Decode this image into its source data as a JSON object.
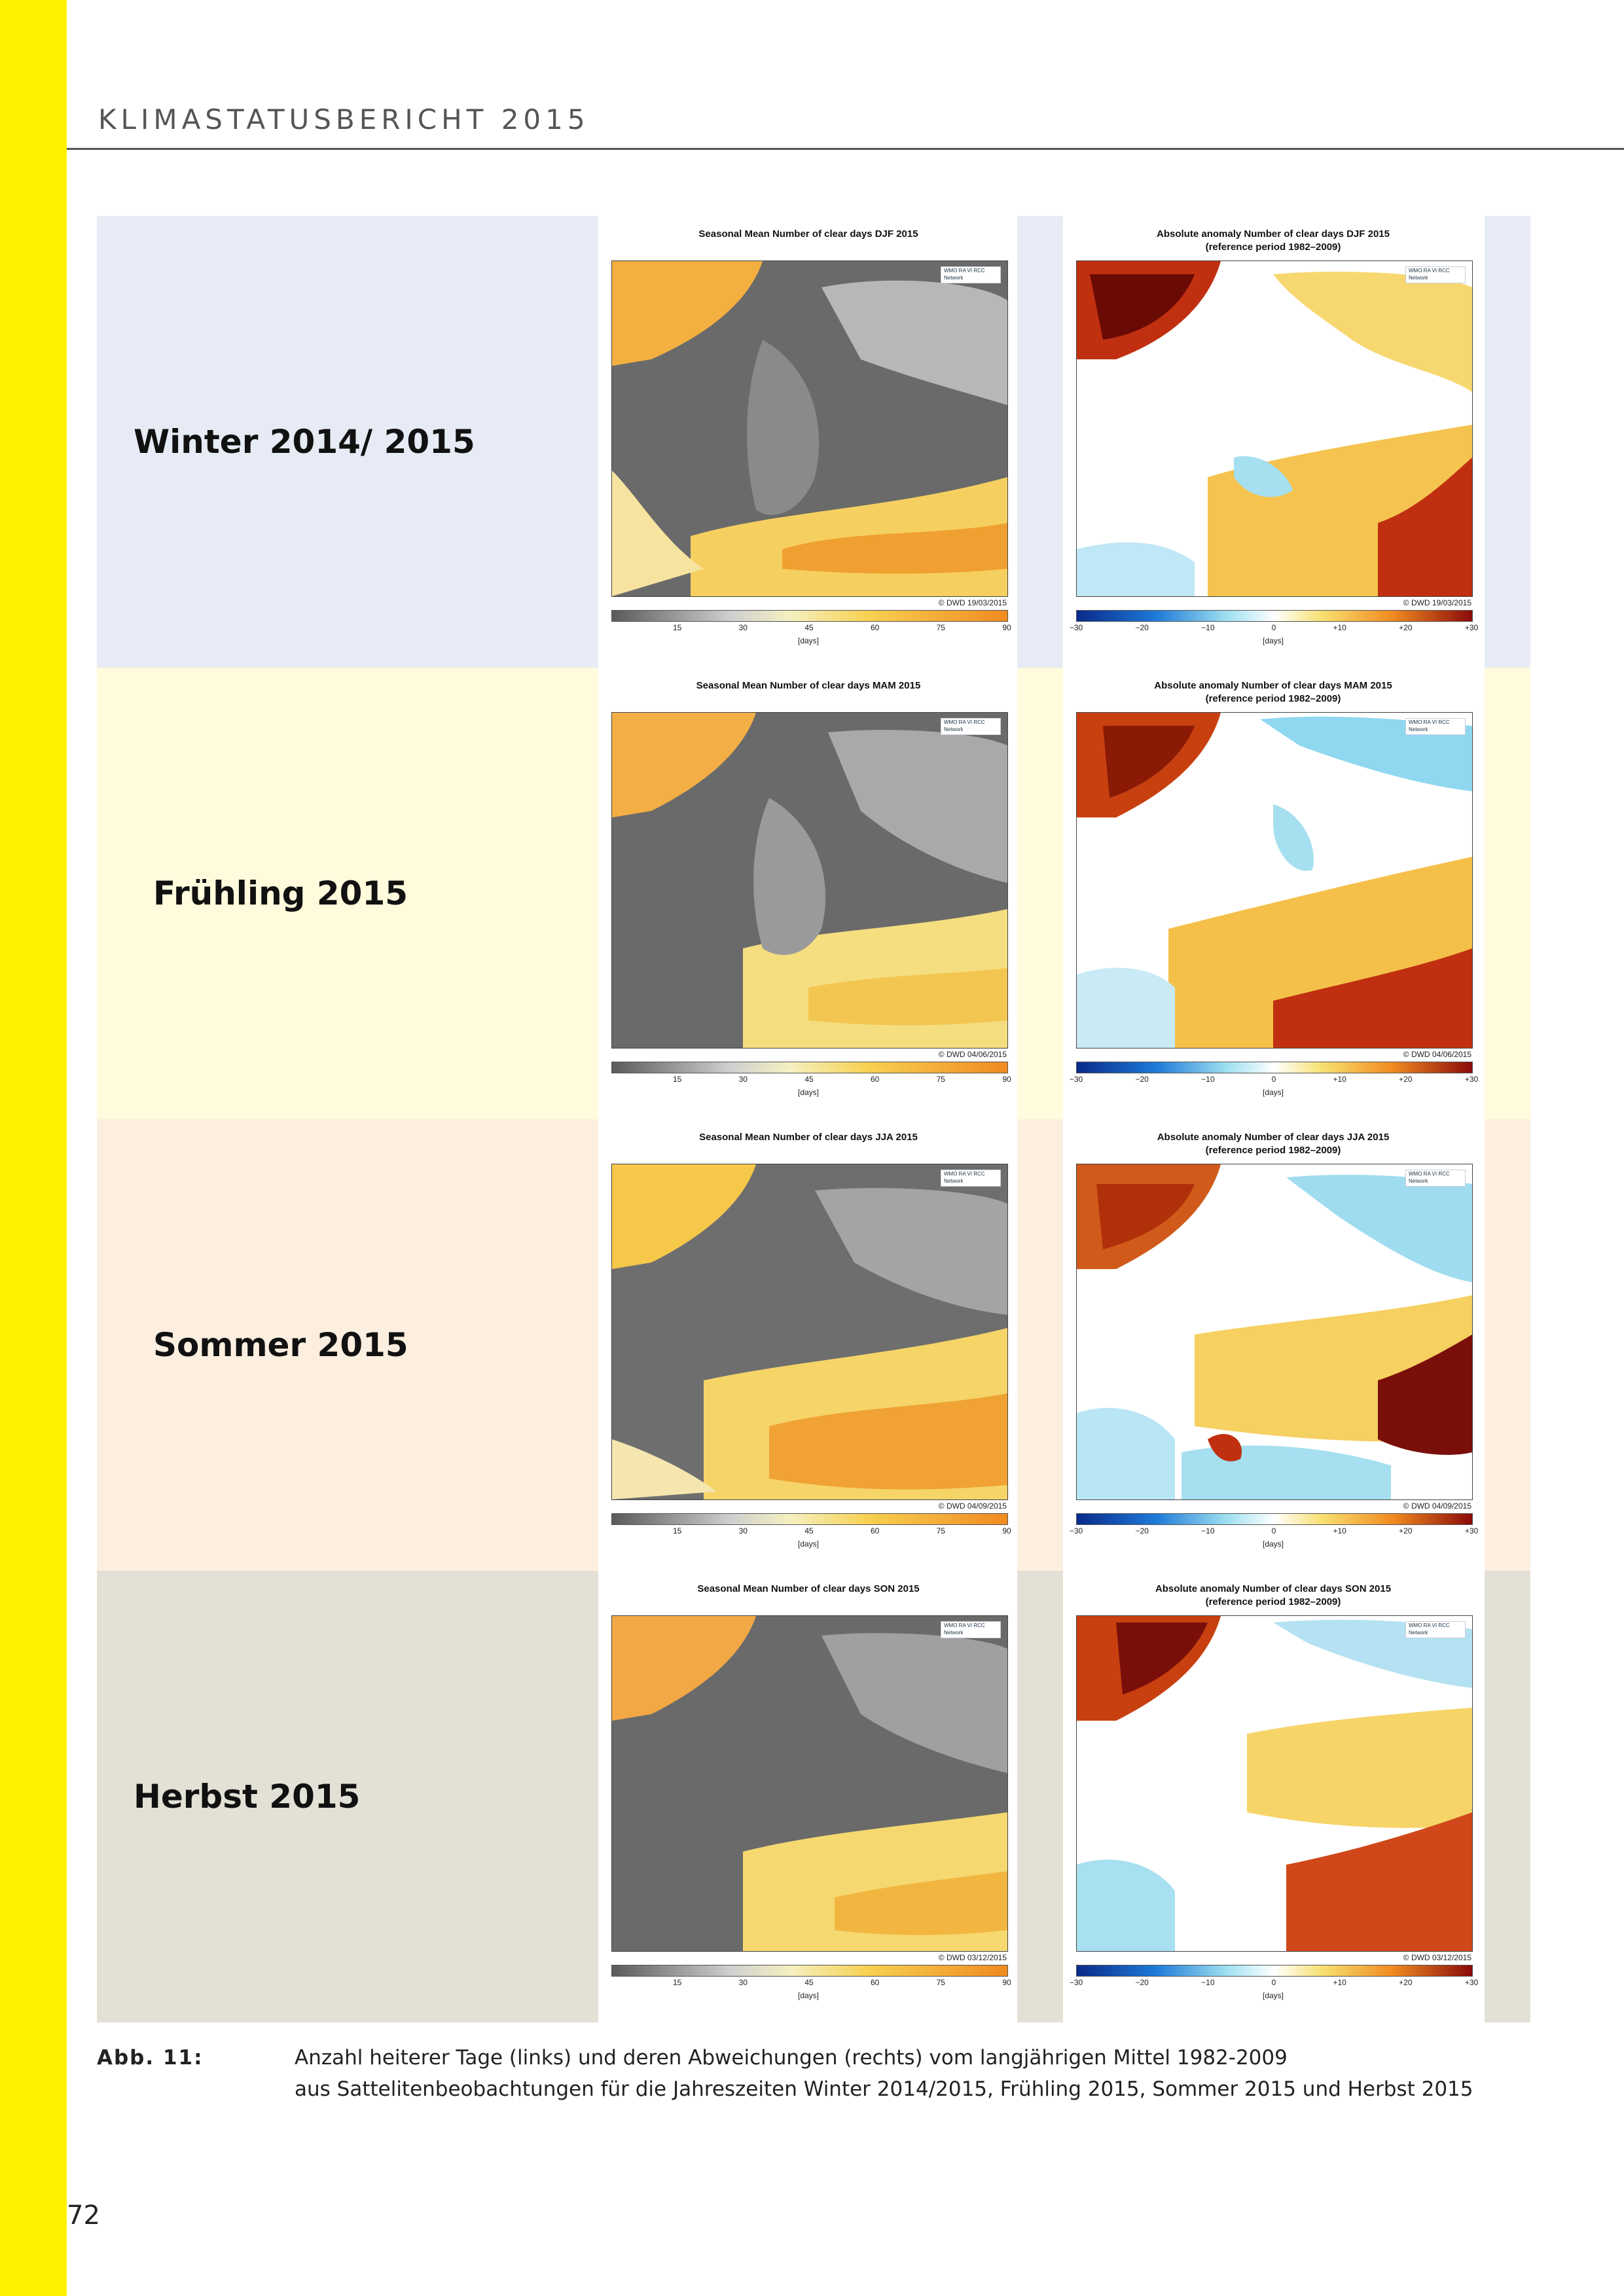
{
  "header": {
    "title": "KLIMASTATUSBERICHT 2015"
  },
  "colors": {
    "stripe": "#fff200",
    "season_winter": "#e6ebf5",
    "season_spring": "#fffbdc",
    "season_summer": "#fdefe0",
    "season_autumn": "#e3e1d6"
  },
  "rows": [
    {
      "label": "Winter 2014/ 2015",
      "left_panel": {
        "title": "Seasonal Mean Number of clear days DJF 2015",
        "credit": "© DWD 19/03/2015",
        "logo": "WMO RA VI RCC Network"
      },
      "right_panel": {
        "title": "Absolute anomaly Number of clear days DJF 2015",
        "subtitle": "(reference period 1982–2009)",
        "credit": "© DWD 19/03/2015",
        "logo": "WMO RA VI RCC Network"
      }
    },
    {
      "label": "Frühling 2015",
      "left_panel": {
        "title": "Seasonal Mean Number of clear days MAM 2015",
        "credit": "© DWD 04/06/2015",
        "logo": "WMO RA VI RCC Network"
      },
      "right_panel": {
        "title": "Absolute anomaly Number of clear days MAM 2015",
        "subtitle": "(reference period 1982–2009)",
        "credit": "© DWD 04/06/2015",
        "logo": "WMO RA VI RCC Network"
      }
    },
    {
      "label": "Sommer 2015",
      "left_panel": {
        "title": "Seasonal Mean Number of clear days JJA 2015",
        "credit": "© DWD 04/09/2015",
        "logo": "WMO RA VI RCC Network"
      },
      "right_panel": {
        "title": "Absolute anomaly Number of clear days JJA 2015",
        "subtitle": "(reference period 1982–2009)",
        "credit": "© DWD 04/09/2015",
        "logo": "WMO RA VI RCC Network"
      }
    },
    {
      "label": "Herbst 2015",
      "left_panel": {
        "title": "Seasonal Mean Number of clear days SON 2015",
        "credit": "© DWD 03/12/2015",
        "logo": "WMO RA VI RCC Network"
      },
      "right_panel": {
        "title": "Absolute anomaly Number of clear days SON 2015",
        "subtitle": "(reference period 1982–2009)",
        "credit": "© DWD 03/12/2015",
        "logo": "WMO RA VI RCC Network"
      }
    }
  ],
  "colorbar_left": {
    "ticks": [
      "15",
      "30",
      "45",
      "60",
      "75",
      "90"
    ],
    "unit": "[days]"
  },
  "colorbar_right": {
    "ticks": [
      "−30",
      "−20",
      "−10",
      "0",
      "+10",
      "+20",
      "+30"
    ],
    "unit": "[days]"
  },
  "caption": {
    "label": "Abb. 11:",
    "line1": "Anzahl heiterer Tage (links) und deren Abweichungen (rechts) vom langjährigen Mittel 1982-2009",
    "line2": "aus Sattelitenbeobachtungen für die Jahreszeiten Winter 2014/2015, Frühling 2015, Sommer 2015 und Herbst 2015"
  },
  "page_number": "72"
}
